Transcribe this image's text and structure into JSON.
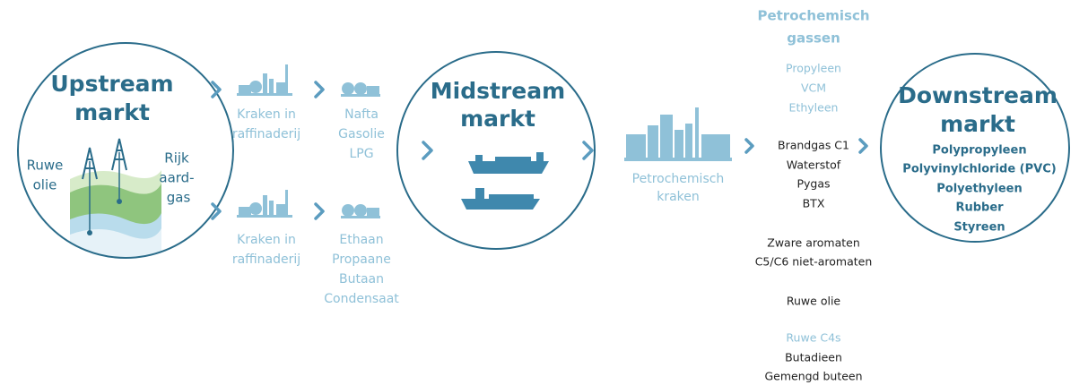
{
  "upstream": {
    "title": [
      "Upstream",
      "markt"
    ],
    "sources": [
      {
        "lines": [
          "Ruwe",
          "olie"
        ]
      },
      {
        "lines": [
          "Rijk",
          "aard-",
          "gas"
        ]
      }
    ]
  },
  "routes": [
    {
      "process": [
        "Kraken in",
        "raffinaderij"
      ],
      "products": [
        "Nafta",
        "Gasolie",
        "LPG"
      ]
    },
    {
      "process": [
        "Kraken in",
        "raffinaderij"
      ],
      "products": [
        "Ethaan",
        "Propaane",
        "Butaan",
        "Condensaat"
      ]
    }
  ],
  "midstream": {
    "title": [
      "Midstream",
      "markt"
    ]
  },
  "cracking": [
    "Petrochemisch",
    "kraken"
  ],
  "outputs": {
    "heading": [
      "Petrochemisch",
      "gassen"
    ],
    "gases": [
      "Propyleen",
      "VCM",
      "Ethyleen"
    ],
    "fuels": [
      "Brandgas C1",
      "Waterstof",
      "Pygas",
      "BTX"
    ],
    "aromatics": [
      "Zware aromaten",
      "C5/C6 niet-aromaten"
    ],
    "crude": [
      "Ruwe olie"
    ],
    "c4_heading": "Ruwe C4s",
    "c4": [
      "Butadieen",
      "Gemengd buteen"
    ]
  },
  "downstream": {
    "title": [
      "Downstream",
      "markt"
    ],
    "products": [
      "Polypropyleen",
      "Polyvinylchloride (PVC)",
      "Polyethyleen",
      "Rubber",
      "Styreen"
    ]
  }
}
